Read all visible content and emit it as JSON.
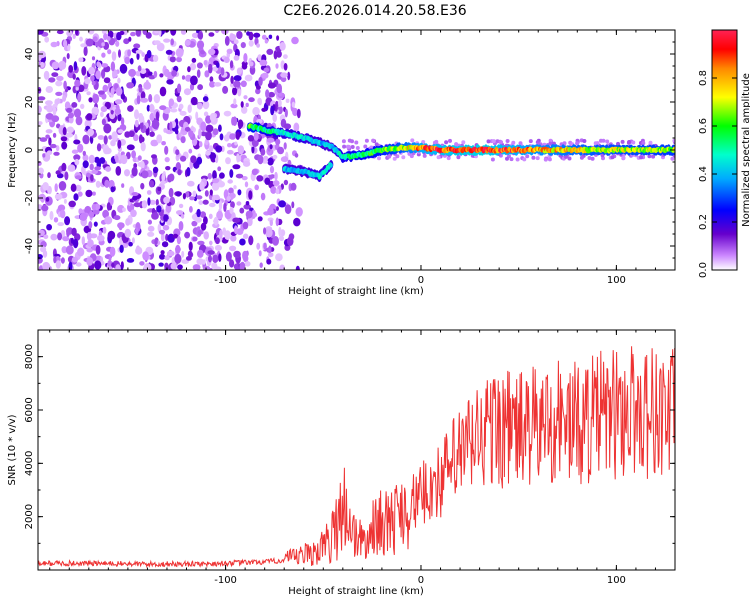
{
  "title": "C2E6.2026.014.20.58.E36",
  "chart_data": [
    {
      "type": "heatmap",
      "title": "C2E6.2026.014.20.58.E36",
      "xlabel": "Height of straight line (km)",
      "ylabel": "Frequency (Hz)",
      "xlim": [
        -196,
        130
      ],
      "ylim": [
        -50,
        50
      ],
      "xticks": [
        -100,
        0,
        100
      ],
      "yticks": [
        -40,
        -20,
        0,
        20,
        40
      ],
      "colorbar": {
        "label": "Normalized spectral amplitude",
        "range": [
          0.0,
          1.0
        ],
        "ticks": [
          "0.0",
          "0.2",
          "0.4",
          "0.6",
          "0.8"
        ],
        "colors": [
          "#ffffff",
          "#cc88ff",
          "#6600cc",
          "#0000ff",
          "#00aaff",
          "#00ffcc",
          "#00ff00",
          "#ffff00",
          "#ff8800",
          "#ff0000",
          "#ff2255"
        ]
      },
      "ridge": {
        "description_values": [
          {
            "x": -88,
            "freq": 10,
            "amp": 0.6
          },
          {
            "x": -78,
            "freq": 8,
            "amp": 0.5
          },
          {
            "x": -70,
            "freq": 7,
            "amp": 0.45
          },
          {
            "x": -60,
            "freq": 5,
            "amp": 0.45
          },
          {
            "x": -52,
            "freq": 3,
            "amp": 0.4
          },
          {
            "x": -45,
            "freq": 1,
            "amp": 0.4
          },
          {
            "x": -40,
            "freq": -3,
            "amp": 0.5
          },
          {
            "x": -30,
            "freq": -2,
            "amp": 0.55
          },
          {
            "x": -20,
            "freq": 0,
            "amp": 0.6
          },
          {
            "x": -10,
            "freq": 1,
            "amp": 0.7
          },
          {
            "x": 0,
            "freq": 1,
            "amp": 0.85
          },
          {
            "x": 10,
            "freq": 0,
            "amp": 0.9
          },
          {
            "x": 30,
            "freq": 0,
            "amp": 0.95
          },
          {
            "x": 60,
            "freq": 0,
            "amp": 0.8
          },
          {
            "x": 90,
            "freq": 0,
            "amp": 0.7
          },
          {
            "x": 130,
            "freq": 0,
            "amp": 0.65
          }
        ],
        "lower_branch": [
          {
            "x": -70,
            "freq": -8,
            "amp": 0.4
          },
          {
            "x": -60,
            "freq": -9,
            "amp": 0.4
          },
          {
            "x": -52,
            "freq": -11,
            "amp": 0.45
          },
          {
            "x": -46,
            "freq": -6,
            "amp": 0.45
          }
        ]
      }
    },
    {
      "type": "line",
      "xlabel": "Height of straight line (km)",
      "ylabel": "SNR (10 * v/v)",
      "xlim": [
        -196,
        130
      ],
      "ylim": [
        0,
        9000
      ],
      "xticks": [
        -100,
        0,
        100
      ],
      "yticks": [
        2000,
        4000,
        6000,
        8000
      ],
      "series": [
        {
          "name": "SNR",
          "color": "#ee3333",
          "x": [
            -196,
            -170,
            -140,
            -110,
            -80,
            -65,
            -55,
            -48,
            -44,
            -40,
            -36,
            -32,
            -28,
            -22,
            -16,
            -10,
            -4,
            0,
            5,
            10,
            15,
            20,
            30,
            40,
            50,
            60,
            70,
            80,
            90,
            100,
            110,
            120,
            130
          ],
          "y": [
            250,
            250,
            220,
            230,
            300,
            400,
            600,
            900,
            1300,
            2500,
            1500,
            1100,
            1000,
            1800,
            1600,
            2200,
            2600,
            2800,
            3300,
            3400,
            4000,
            4400,
            5200,
            5500,
            5400,
            5500,
            5800,
            5600,
            5900,
            6000,
            6200,
            6100,
            6000
          ]
        }
      ]
    }
  ]
}
